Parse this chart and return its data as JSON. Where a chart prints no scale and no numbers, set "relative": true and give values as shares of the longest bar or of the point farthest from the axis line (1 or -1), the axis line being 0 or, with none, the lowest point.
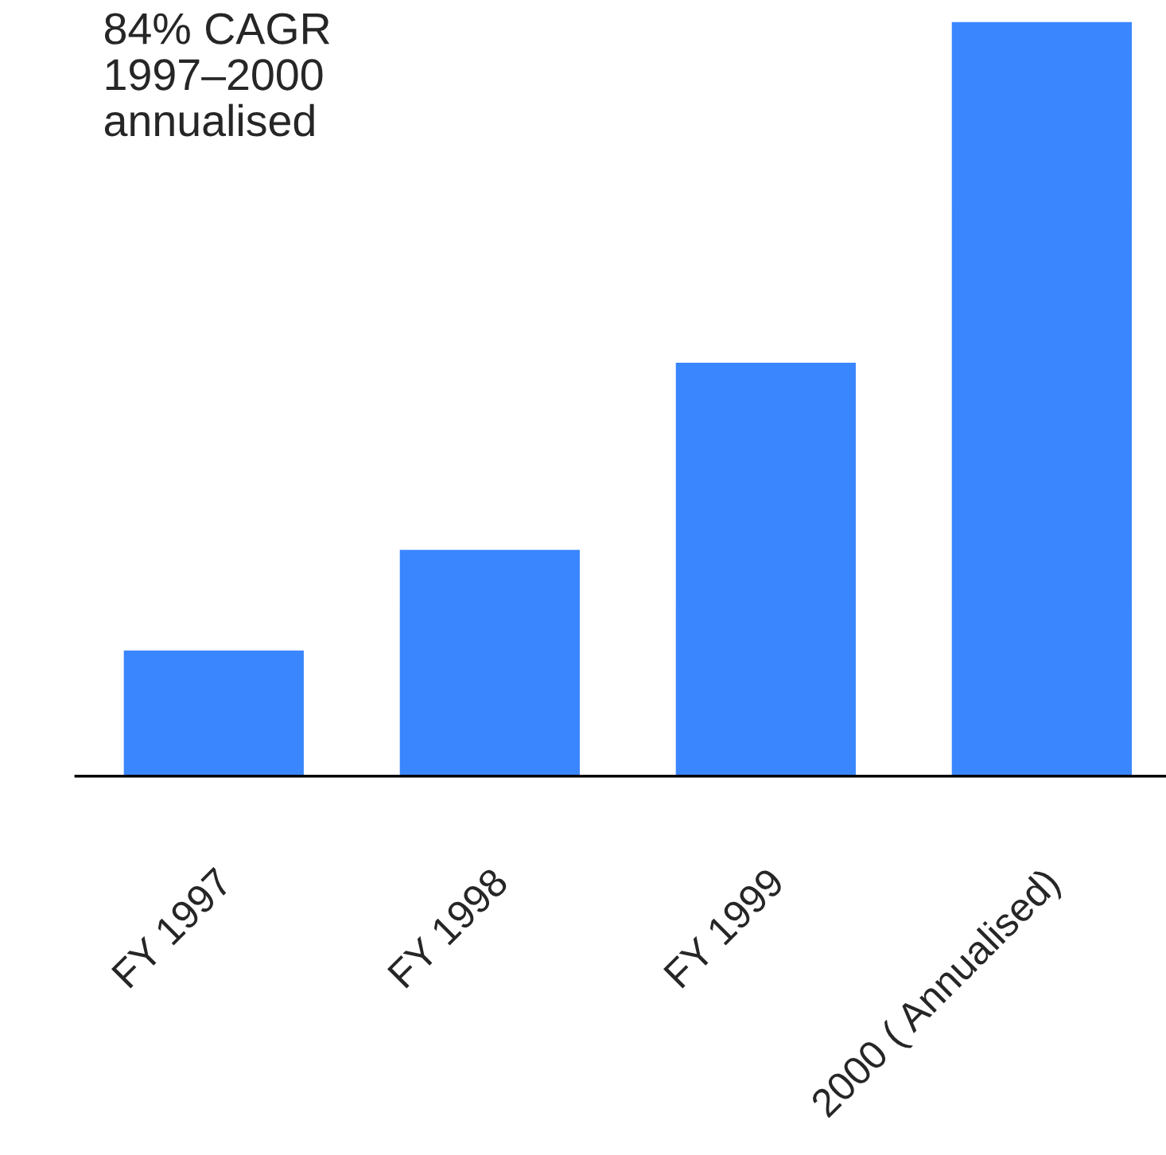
{
  "chart_data": {
    "type": "bar",
    "relative": true,
    "tick_labels": "x",
    "grid": false,
    "legend": false,
    "categories": [
      "FY 1997",
      "FY 1998",
      "FY 1999",
      "2000 ( Annualised)"
    ],
    "values": [
      0.168,
      0.301,
      0.549,
      1
    ],
    "color": "#3a86ff",
    "annotations": [
      "84% CAGR\n1997–2000\nannualised"
    ]
  }
}
